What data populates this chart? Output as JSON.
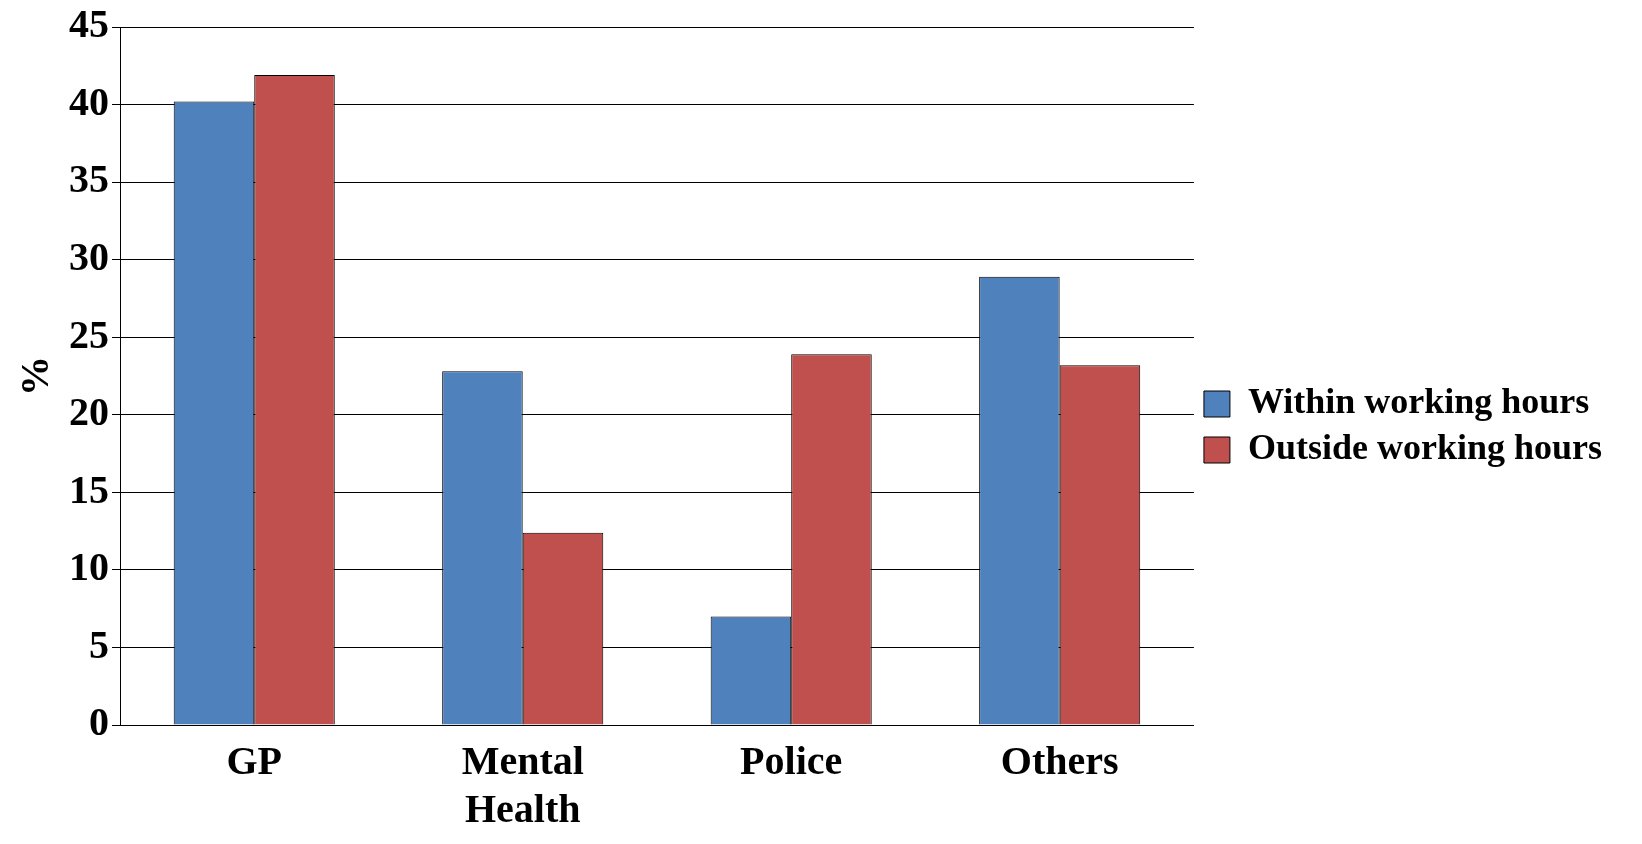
{
  "chart_data": {
    "type": "bar",
    "ylabel": "%",
    "categories": [
      "GP",
      "Mental Health",
      "Police",
      "Others"
    ],
    "series": [
      {
        "name": "Within working hours",
        "color": "#4f81bd",
        "values": [
          40.2,
          22.8,
          7.0,
          28.9
        ]
      },
      {
        "name": "Outside working hours",
        "color": "#c0504d",
        "values": [
          41.9,
          12.4,
          23.9,
          23.2
        ]
      }
    ],
    "ylim": [
      0,
      45
    ],
    "yticks": [
      0,
      5,
      10,
      15,
      20,
      25,
      30,
      35,
      40,
      45
    ],
    "grid": "y",
    "legend": "right"
  }
}
